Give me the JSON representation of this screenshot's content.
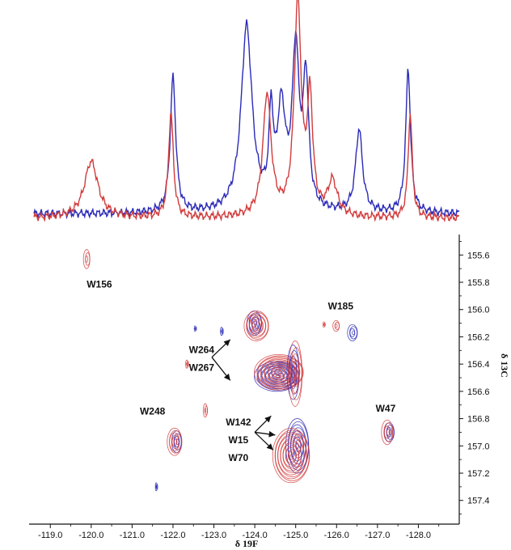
{
  "chart_data": {
    "type": "contour",
    "xlabel": "δ 19F",
    "ylabel": "δ 13C",
    "x_ticks": [
      -119.0,
      -120.0,
      -121.0,
      -122.0,
      -123.0,
      -124.0,
      -125.0,
      -126.0,
      -127.0,
      -128.0
    ],
    "x_tick_labels": [
      "-119.0",
      "-120.0",
      "-121.0",
      "-122.0",
      "-123.0",
      "-124.0",
      "-125.0",
      "-126.0",
      "-127.0",
      "-128.0"
    ],
    "x_range": [
      -118.6,
      -129.0
    ],
    "y_ticks": [
      155.6,
      155.8,
      156.0,
      156.2,
      156.4,
      156.6,
      156.8,
      157.0,
      157.2,
      157.4
    ],
    "y_tick_labels": [
      "155.6",
      "155.8",
      "156.0",
      "156.2",
      "156.4",
      "156.6",
      "156.8",
      "157.0",
      "157.2",
      "157.4"
    ],
    "y_range": [
      155.45,
      157.55
    ],
    "colors": {
      "blue": "#2a2ab8",
      "red": "#d23b3b"
    },
    "spectrum_1d": {
      "baseline_blue": 0.05,
      "baseline_red": 0.03,
      "blue_peaks": [
        {
          "x": -122.0,
          "h": 0.62,
          "w": 0.08
        },
        {
          "x": -123.8,
          "h": 0.85,
          "w": 0.16
        },
        {
          "x": -124.4,
          "h": 0.4,
          "w": 0.06
        },
        {
          "x": -124.65,
          "h": 0.45,
          "w": 0.12
        },
        {
          "x": -125.0,
          "h": 0.72,
          "w": 0.1
        },
        {
          "x": -125.25,
          "h": 0.58,
          "w": 0.08
        },
        {
          "x": -126.55,
          "h": 0.38,
          "w": 0.1
        },
        {
          "x": -127.75,
          "h": 0.66,
          "w": 0.07
        }
      ],
      "red_peaks": [
        {
          "x": -120.0,
          "h": 0.26,
          "w": 0.2
        },
        {
          "x": -121.95,
          "h": 0.48,
          "w": 0.07
        },
        {
          "x": -124.3,
          "h": 0.56,
          "w": 0.12
        },
        {
          "x": -125.05,
          "h": 0.98,
          "w": 0.1
        },
        {
          "x": -125.35,
          "h": 0.52,
          "w": 0.08
        },
        {
          "x": -125.9,
          "h": 0.16,
          "w": 0.14
        },
        {
          "x": -127.8,
          "h": 0.48,
          "w": 0.06
        }
      ]
    },
    "contour_peaks": [
      {
        "x": -119.9,
        "y": 155.63,
        "rx": 0.08,
        "ry": 0.07,
        "color": "red"
      },
      {
        "x": -124.0,
        "y": 156.1,
        "rx": 0.18,
        "ry": 0.09,
        "color": "blue"
      },
      {
        "x": -124.05,
        "y": 156.12,
        "rx": 0.3,
        "ry": 0.11,
        "color": "red"
      },
      {
        "x": -126.4,
        "y": 156.17,
        "rx": 0.12,
        "ry": 0.06,
        "color": "blue"
      },
      {
        "x": -126.0,
        "y": 156.12,
        "rx": 0.08,
        "ry": 0.04,
        "color": "red"
      },
      {
        "x": -124.55,
        "y": 156.49,
        "rx": 0.55,
        "ry": 0.11,
        "color": "blue"
      },
      {
        "x": -124.6,
        "y": 156.46,
        "rx": 0.6,
        "ry": 0.13,
        "color": "red"
      },
      {
        "x": -124.95,
        "y": 156.46,
        "rx": 0.15,
        "ry": 0.2,
        "color": "blue"
      },
      {
        "x": -125.0,
        "y": 156.47,
        "rx": 0.17,
        "ry": 0.24,
        "color": "red"
      },
      {
        "x": -122.1,
        "y": 156.97,
        "rx": 0.12,
        "ry": 0.08,
        "color": "blue"
      },
      {
        "x": -122.05,
        "y": 156.97,
        "rx": 0.18,
        "ry": 0.1,
        "color": "red"
      },
      {
        "x": -127.3,
        "y": 156.9,
        "rx": 0.12,
        "ry": 0.07,
        "color": "blue"
      },
      {
        "x": -127.25,
        "y": 156.9,
        "rx": 0.14,
        "ry": 0.09,
        "color": "red"
      },
      {
        "x": -125.05,
        "y": 157.0,
        "rx": 0.28,
        "ry": 0.2,
        "color": "blue"
      },
      {
        "x": -124.9,
        "y": 157.07,
        "rx": 0.45,
        "ry": 0.2,
        "color": "red"
      },
      {
        "x": -122.8,
        "y": 156.74,
        "rx": 0.05,
        "ry": 0.05,
        "color": "red"
      },
      {
        "x": -122.35,
        "y": 156.4,
        "rx": 0.03,
        "ry": 0.03,
        "color": "red"
      },
      {
        "x": -123.2,
        "y": 156.16,
        "rx": 0.03,
        "ry": 0.03,
        "color": "blue"
      },
      {
        "x": -122.55,
        "y": 156.14,
        "rx": 0.02,
        "ry": 0.02,
        "color": "blue"
      },
      {
        "x": -121.6,
        "y": 157.3,
        "rx": 0.02,
        "ry": 0.03,
        "color": "blue"
      },
      {
        "x": -125.7,
        "y": 156.11,
        "rx": 0.02,
        "ry": 0.02,
        "color": "red"
      }
    ],
    "annotations": [
      {
        "text": "W156",
        "x": -120.2,
        "y": 155.84
      },
      {
        "text": "W185",
        "x": -126.1,
        "y": 156.0
      },
      {
        "text": "W264",
        "x": -122.7,
        "y": 156.32
      },
      {
        "text": "W267",
        "x": -122.7,
        "y": 156.45
      },
      {
        "text": "W248",
        "x": -121.5,
        "y": 156.77
      },
      {
        "text": "W142",
        "x": -123.6,
        "y": 156.85
      },
      {
        "text": "W15",
        "x": -123.6,
        "y": 156.98
      },
      {
        "text": "W70",
        "x": -123.6,
        "y": 157.11
      },
      {
        "text": "W47",
        "x": -127.2,
        "y": 156.75
      }
    ],
    "arrows": [
      {
        "from": [
          -122.95,
          156.35
        ],
        "to": [
          -123.4,
          156.22
        ]
      },
      {
        "from": [
          -122.95,
          156.35
        ],
        "to": [
          -123.4,
          156.52
        ]
      },
      {
        "from": [
          -124.0,
          156.9
        ],
        "to": [
          -124.4,
          156.78
        ]
      },
      {
        "from": [
          -124.0,
          156.9
        ],
        "to": [
          -124.5,
          156.92
        ]
      },
      {
        "from": [
          -124.0,
          156.9
        ],
        "to": [
          -124.45,
          157.03
        ]
      }
    ]
  }
}
